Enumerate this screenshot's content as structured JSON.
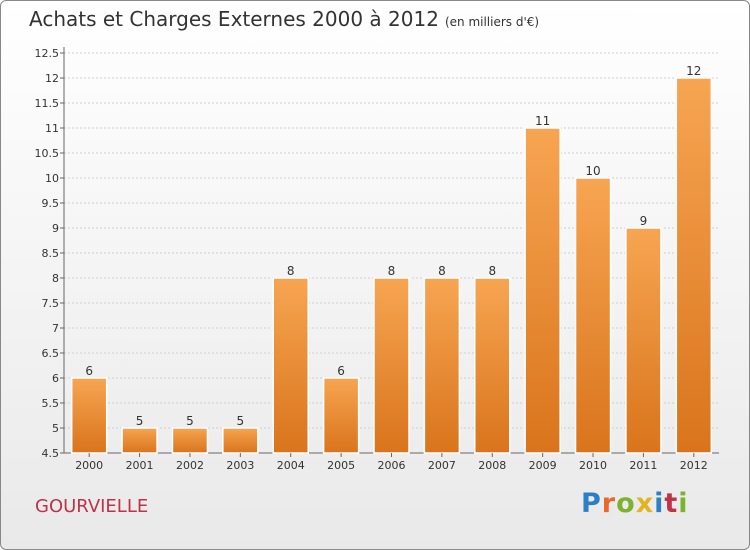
{
  "header": {
    "title": "Achats et Charges Externes 2000 à 2012",
    "unit": "(en milliers d'€)"
  },
  "footer": {
    "town": "GOURVIELLE",
    "logo": "Proxiti"
  },
  "colors": {
    "bar_top": "#f7a552",
    "bar_bottom": "#d9741c",
    "town_text": "#c0314a"
  },
  "chart_data": {
    "type": "bar",
    "categories": [
      "2000",
      "2001",
      "2002",
      "2003",
      "2004",
      "2005",
      "2006",
      "2007",
      "2008",
      "2009",
      "2010",
      "2011",
      "2012"
    ],
    "values": [
      6,
      5,
      5,
      5,
      8,
      6,
      8,
      8,
      8,
      11,
      10,
      9,
      12
    ],
    "labels": [
      "6",
      "5",
      "5",
      "5",
      "8",
      "6",
      "8",
      "8",
      "8",
      "11",
      "10",
      "9",
      "12"
    ],
    "yticks": [
      "4.5",
      "5",
      "5.5",
      "6",
      "6.5",
      "7",
      "7.5",
      "8",
      "8.5",
      "9",
      "9.5",
      "10",
      "10.5",
      "11",
      "11.5",
      "12",
      "12.5"
    ],
    "ylim": [
      4.5,
      12.5
    ],
    "grid": true
  }
}
